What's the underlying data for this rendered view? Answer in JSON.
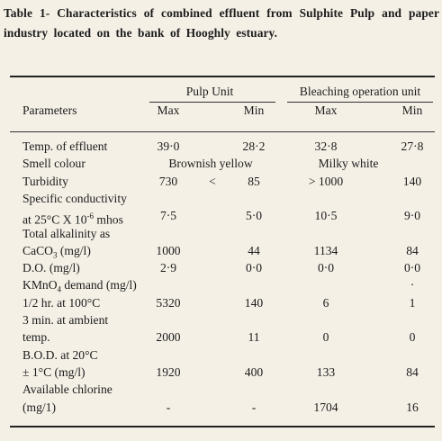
{
  "caption": "Table 1- Characteristics of combined effluent from Sulphite Pulp and paper industry located on the bank of Hooghly estuary.",
  "headers": {
    "parameters": "Parameters",
    "pulp_unit": "Pulp Unit",
    "bleaching_unit": "Bleaching operation unit",
    "max": "Max",
    "min": "Min"
  },
  "rows": [
    {
      "param": [
        "Temp. of effluent"
      ],
      "values": [
        "39·0",
        "28·2",
        "32·8",
        "27·8"
      ]
    },
    {
      "param": [
        "Smell colour"
      ],
      "pulp_text": "Brownish yellow",
      "bleach_text": "Milky white"
    },
    {
      "param": [
        "Turbidity"
      ],
      "values": [
        "730",
        "85",
        "> 1000",
        "140"
      ],
      "pulp_symbol": "<"
    },
    {
      "param": [
        "Specific conductivity",
        "at 25°C X 10^-6 mhos"
      ],
      "values": [
        "7·5",
        "5·0",
        "10·5",
        "9·0"
      ]
    },
    {
      "param": [
        "Total alkalinity as",
        "CaCO3 (mg/l)"
      ],
      "values": [
        "1000",
        "44",
        "1134",
        "84"
      ]
    },
    {
      "param": [
        "D.O. (mg/l)"
      ],
      "values": [
        "2·9",
        "0·0",
        "0·0",
        "0·0"
      ]
    },
    {
      "param": [
        "KMnO4 demand (mg/l)"
      ],
      "values": [
        "",
        "",
        "",
        "·"
      ]
    },
    {
      "param": [
        "1/2 hr. at 100°C"
      ],
      "values": [
        "5320",
        "140",
        "6",
        "1"
      ]
    },
    {
      "param": [
        "3 min. at ambient"
      ],
      "values": [
        "",
        "",
        "",
        ""
      ]
    },
    {
      "param": [
        "temp."
      ],
      "values": [
        "2000",
        "11",
        "0",
        "0"
      ]
    },
    {
      "param": [
        "B.O.D. at 20°C",
        "± 1°C (mg/l)"
      ],
      "values": [
        "1920",
        "400",
        "133",
        "84"
      ]
    },
    {
      "param": [
        "Available chlorine",
        "(mg/1)"
      ],
      "values": [
        "-",
        "-",
        "1704",
        "16"
      ]
    }
  ]
}
